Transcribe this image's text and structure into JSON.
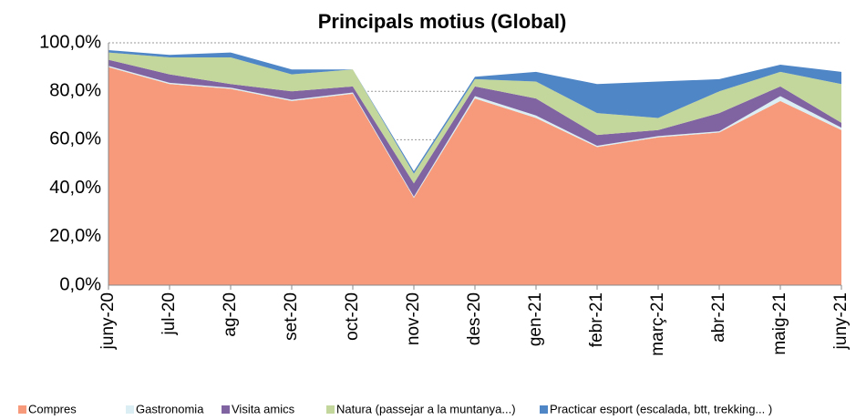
{
  "chart_data": {
    "type": "stacked_area",
    "title": "Principals motius (Global)",
    "categories": [
      "juny-20",
      "jul-20",
      "ag-20",
      "set-20",
      "oct-20",
      "nov-20",
      "des-20",
      "gen-21",
      "febr-21",
      "març-21",
      "abr-21",
      "maig-21",
      "juny-21"
    ],
    "series": [
      {
        "name": "Compres",
        "color": "#f79a7c",
        "values": [
          90,
          83,
          81,
          76,
          79,
          36,
          77,
          69,
          57,
          61,
          63,
          76,
          64
        ]
      },
      {
        "name": "Gastronomia",
        "color": "#daeef3",
        "values": [
          0.5,
          0.5,
          0.5,
          0.5,
          0.5,
          0.5,
          1,
          1,
          0.5,
          0.5,
          0.5,
          2,
          1
        ]
      },
      {
        "name": "Visita amics",
        "color": "#8064a2",
        "values": [
          2.5,
          3.5,
          1.5,
          3.5,
          2.5,
          5.5,
          4,
          7,
          4.5,
          2.5,
          7.5,
          4,
          2
        ]
      },
      {
        "name": "Natura (passejar a la muntanya...)",
        "color": "#c3d69b",
        "values": [
          3,
          7,
          11,
          7,
          7,
          4,
          3,
          7,
          9,
          5,
          9,
          6,
          16
        ]
      },
      {
        "name": "Practicar esport  (escalada, btt, trekking... )",
        "color": "#4f86c6",
        "values": [
          1,
          1,
          2,
          2,
          0,
          1,
          1,
          4,
          12,
          15,
          5,
          3,
          5
        ]
      }
    ],
    "ylim": [
      0,
      100
    ],
    "yticks": [
      {
        "value": 0,
        "label": "0,0%"
      },
      {
        "value": 20,
        "label": "20,0%"
      },
      {
        "value": 40,
        "label": "40,0%"
      },
      {
        "value": 60,
        "label": "60,0%"
      },
      {
        "value": 80,
        "label": "80,0%"
      },
      {
        "value": 100,
        "label": "100,0%"
      }
    ],
    "grid": true,
    "legend": "bottom"
  }
}
